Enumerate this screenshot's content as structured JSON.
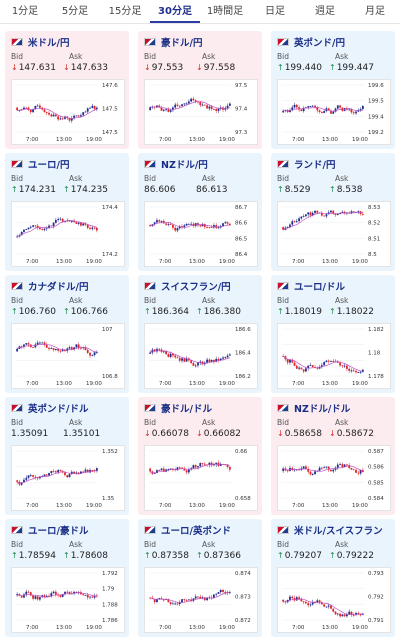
{
  "tabs": [
    "1分足",
    "5分足",
    "15分足",
    "30分足",
    "1時間足",
    "日足",
    "週足",
    "月足"
  ],
  "active_tab": "30分足",
  "labels": {
    "bid": "Bid",
    "ask": "Ask"
  },
  "colors": {
    "up": "#1f8a50",
    "down": "#d62b2b",
    "title": "#1a2e86",
    "card_blue": "#e9f4fd",
    "card_red": "#fdecef",
    "candle_up": "#1f2f8f",
    "candle_down": "#e0252a",
    "ma": "#c04fc7"
  },
  "pairs": [
    {
      "name": "米ドル/円",
      "flag": "us-flag",
      "bid": "147.631",
      "ask": "147.633",
      "dir": "down",
      "card": "red",
      "y_ticks": [
        "147.6",
        "147.5",
        "147.5"
      ],
      "x_ticks": [
        "7:00",
        "13:00",
        "19:00"
      ]
    },
    {
      "name": "豪ドル/円",
      "flag": "au-flag",
      "bid": "97.553",
      "ask": "97.558",
      "dir": "down",
      "card": "red",
      "y_ticks": [
        "97.5",
        "97.4",
        "97.3"
      ],
      "x_ticks": [
        "7:00",
        "13:00",
        "19:00"
      ]
    },
    {
      "name": "英ポンド/円",
      "flag": "uk-flag",
      "bid": "199.440",
      "ask": "199.447",
      "dir": "up",
      "card": "blue",
      "y_ticks": [
        "199.6",
        "199.5",
        "199.4",
        "199.2"
      ],
      "x_ticks": [
        "7:00",
        "13:00",
        "19:00"
      ]
    },
    {
      "name": "ユーロ/円",
      "flag": "eu-flag",
      "bid": "174.231",
      "ask": "174.235",
      "dir": "up",
      "card": "blue",
      "y_ticks": [
        "174.4",
        "174.2"
      ],
      "x_ticks": [
        "7:00",
        "13:00",
        "19:00"
      ]
    },
    {
      "name": "NZドル/円",
      "flag": "nz-flag",
      "bid": "86.606",
      "ask": "86.613",
      "dir": "none",
      "card": "blue",
      "y_ticks": [
        "86.7",
        "86.6",
        "86.5",
        "86.4"
      ],
      "x_ticks": [
        "7:00",
        "13:00",
        "19:00"
      ]
    },
    {
      "name": "ランド/円",
      "flag": "za-flag",
      "bid": "8.529",
      "ask": "8.538",
      "dir": "up",
      "card": "blue",
      "y_ticks": [
        "8.53",
        "8.52",
        "8.51",
        "8.5"
      ],
      "x_ticks": [
        "7:00",
        "13:00",
        "19:00"
      ]
    },
    {
      "name": "カナダドル/円",
      "flag": "ca-flag",
      "bid": "106.760",
      "ask": "106.766",
      "dir": "up",
      "card": "blue",
      "y_ticks": [
        "107",
        "106.8"
      ],
      "x_ticks": [
        "7:00",
        "13:00",
        "19:00"
      ]
    },
    {
      "name": "スイスフラン/円",
      "flag": "ch-flag",
      "bid": "186.364",
      "ask": "186.380",
      "dir": "up",
      "card": "blue",
      "y_ticks": [
        "186.6",
        "186.4",
        "186.2"
      ],
      "x_ticks": [
        "7:00",
        "13:00",
        "19:00"
      ]
    },
    {
      "name": "ユーロ/ドル",
      "flag": "eu-us-flag",
      "bid": "1.18019",
      "ask": "1.18022",
      "dir": "up",
      "card": "blue",
      "y_ticks": [
        "1.182",
        "1.18",
        "1.178"
      ],
      "x_ticks": [
        "7:00",
        "13:00",
        "19:00"
      ]
    },
    {
      "name": "英ポンド/ドル",
      "flag": "uk-us-flag",
      "bid": "1.35091",
      "ask": "1.35101",
      "dir": "none",
      "card": "blue",
      "y_ticks": [
        "1.352",
        "1.35"
      ],
      "x_ticks": [
        "7:00",
        "13:00",
        "19:00"
      ]
    },
    {
      "name": "豪ドル/ドル",
      "flag": "au-us-flag",
      "bid": "0.66078",
      "ask": "0.66082",
      "dir": "down",
      "card": "red",
      "y_ticks": [
        "0.66",
        "0.658"
      ],
      "x_ticks": [
        "7:00",
        "13:00",
        "19:00"
      ]
    },
    {
      "name": "NZドル/ドル",
      "flag": "nz-us-flag",
      "bid": "0.58658",
      "ask": "0.58672",
      "dir": "down",
      "card": "red",
      "y_ticks": [
        "0.587",
        "0.586",
        "0.585",
        "0.584"
      ],
      "x_ticks": [
        "7:00",
        "13:00",
        "19:00"
      ]
    },
    {
      "name": "ユーロ/豪ドル",
      "flag": "eu-au-flag",
      "bid": "1.78594",
      "ask": "1.78608",
      "dir": "up",
      "card": "blue",
      "y_ticks": [
        "1.792",
        "1.79",
        "1.788",
        "1.786"
      ],
      "x_ticks": [
        "7:00",
        "13:00",
        "19:00"
      ]
    },
    {
      "name": "ユーロ/英ポンド",
      "flag": "eu-uk-flag",
      "bid": "0.87358",
      "ask": "0.87366",
      "dir": "up",
      "card": "blue",
      "y_ticks": [
        "0.874",
        "0.873",
        "0.872"
      ],
      "x_ticks": [
        "7:00",
        "13:00",
        "19:00"
      ]
    },
    {
      "name": "米ドル/スイスフラン",
      "flag": "us-ch-flag",
      "bid": "0.79207",
      "ask": "0.79222",
      "dir": "up",
      "card": "blue",
      "y_ticks": [
        "0.793",
        "0.792",
        "0.791"
      ],
      "x_ticks": [
        "7:00",
        "13:00",
        "19:00"
      ]
    }
  ]
}
